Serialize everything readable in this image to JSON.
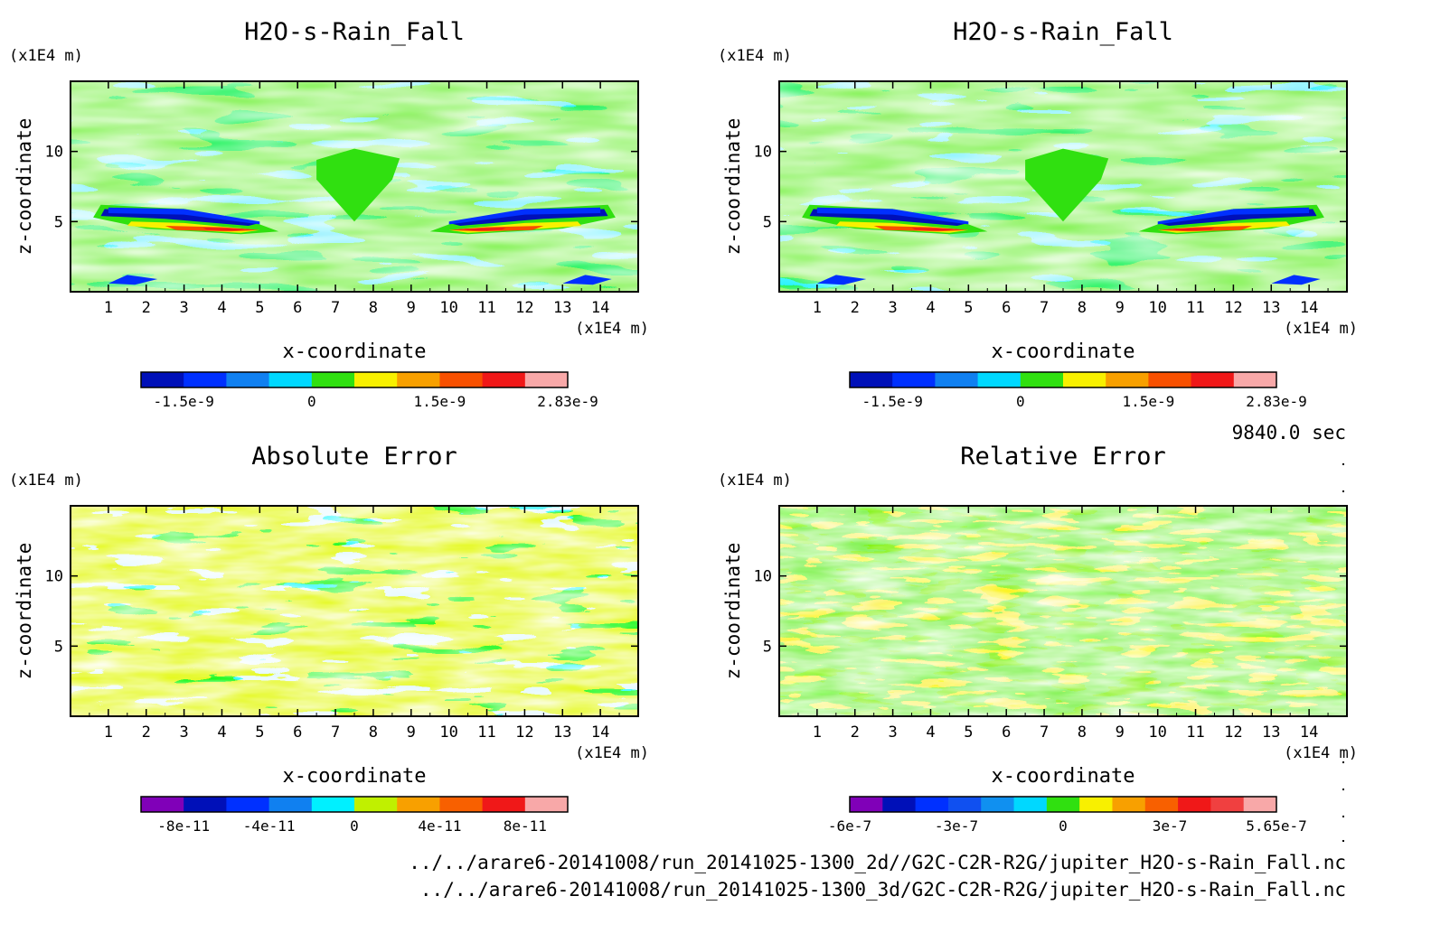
{
  "figure": {
    "time_label": "9840.0 sec",
    "file_paths": [
      "../../arare6-20141008/run_20141025-1300_2d//G2C-C2R-R2G/jupiter_H2O-s-Rain_Fall.nc",
      "../../arare6-20141008/run_20141025-1300_3d/G2C-C2R-R2G/jupiter_H2O-s-Rain_Fall.nc"
    ]
  },
  "chart_data": [
    {
      "type": "heatmap",
      "title": "H2O-s-Rain_Fall",
      "xlabel": "x-coordinate",
      "ylabel": "z-coordinate",
      "x_unit": "(x1E4 m)",
      "y_unit": "(x1E4 m)",
      "xlim": [
        0,
        15
      ],
      "ylim": [
        0,
        15
      ],
      "x_ticks": [
        1,
        2,
        3,
        4,
        5,
        6,
        7,
        8,
        9,
        10,
        11,
        12,
        13,
        14
      ],
      "y_ticks": [
        5,
        10
      ],
      "field": "rain",
      "colorbar": {
        "colors": [
          "#0010b8",
          "#0030ff",
          "#1080f0",
          "#00d8ff",
          "#30e010",
          "#f8f000",
          "#f8a000",
          "#f85000",
          "#f01818",
          "#f8a8a8"
        ],
        "tick_labels": [
          "-1.5e-9",
          "0",
          "1.5e-9",
          "2.83e-9"
        ],
        "tick_fractions": [
          0.1,
          0.4,
          0.7,
          1.0
        ]
      }
    },
    {
      "type": "heatmap",
      "title": "H2O-s-Rain_Fall",
      "xlabel": "x-coordinate",
      "ylabel": "z-coordinate",
      "x_unit": "(x1E4 m)",
      "y_unit": "(x1E4 m)",
      "xlim": [
        0,
        15
      ],
      "ylim": [
        0,
        15
      ],
      "x_ticks": [
        1,
        2,
        3,
        4,
        5,
        6,
        7,
        8,
        9,
        10,
        11,
        12,
        13,
        14
      ],
      "y_ticks": [
        5,
        10
      ],
      "field": "rain",
      "colorbar": {
        "colors": [
          "#0010b8",
          "#0030ff",
          "#1080f0",
          "#00d8ff",
          "#30e010",
          "#f8f000",
          "#f8a000",
          "#f85000",
          "#f01818",
          "#f8a8a8"
        ],
        "tick_labels": [
          "-1.5e-9",
          "0",
          "1.5e-9",
          "2.83e-9"
        ],
        "tick_fractions": [
          0.1,
          0.4,
          0.7,
          1.0
        ]
      }
    },
    {
      "type": "heatmap",
      "title": "Absolute Error",
      "xlabel": "x-coordinate",
      "ylabel": "z-coordinate",
      "x_unit": "(x1E4 m)",
      "y_unit": "(x1E4 m)",
      "xlim": [
        0,
        15
      ],
      "ylim": [
        0,
        15
      ],
      "x_ticks": [
        1,
        2,
        3,
        4,
        5,
        6,
        7,
        8,
        9,
        10,
        11,
        12,
        13,
        14
      ],
      "y_ticks": [
        5,
        10
      ],
      "field": "abs",
      "colorbar": {
        "colors": [
          "#8000b8",
          "#0010b8",
          "#0030ff",
          "#1080f0",
          "#00f0ff",
          "#c0f000",
          "#f8a000",
          "#f86000",
          "#f01818",
          "#f8a8a8"
        ],
        "tick_labels": [
          "-8e-11",
          "-4e-11",
          "0",
          "4e-11",
          "8e-11"
        ],
        "tick_fractions": [
          0.1,
          0.3,
          0.5,
          0.7,
          0.9
        ]
      }
    },
    {
      "type": "heatmap",
      "title": "Relative Error",
      "xlabel": "x-coordinate",
      "ylabel": "z-coordinate",
      "x_unit": "(x1E4 m)",
      "y_unit": "(x1E4 m)",
      "xlim": [
        0,
        15
      ],
      "ylim": [
        0,
        15
      ],
      "x_ticks": [
        1,
        2,
        3,
        4,
        5,
        6,
        7,
        8,
        9,
        10,
        11,
        12,
        13,
        14
      ],
      "y_ticks": [
        5,
        10
      ],
      "field": "rel",
      "colorbar": {
        "colors": [
          "#8000b8",
          "#0010b8",
          "#0030ff",
          "#1050f0",
          "#1090f0",
          "#00d8ff",
          "#30e010",
          "#f8f000",
          "#f8a000",
          "#f86000",
          "#f01818",
          "#f04040",
          "#f8a8a8"
        ],
        "tick_labels": [
          "-6e-7",
          "-3e-7",
          "0",
          "3e-7",
          "5.65e-7"
        ],
        "tick_fractions": [
          0.0,
          0.25,
          0.5,
          0.75,
          1.0
        ]
      }
    }
  ]
}
